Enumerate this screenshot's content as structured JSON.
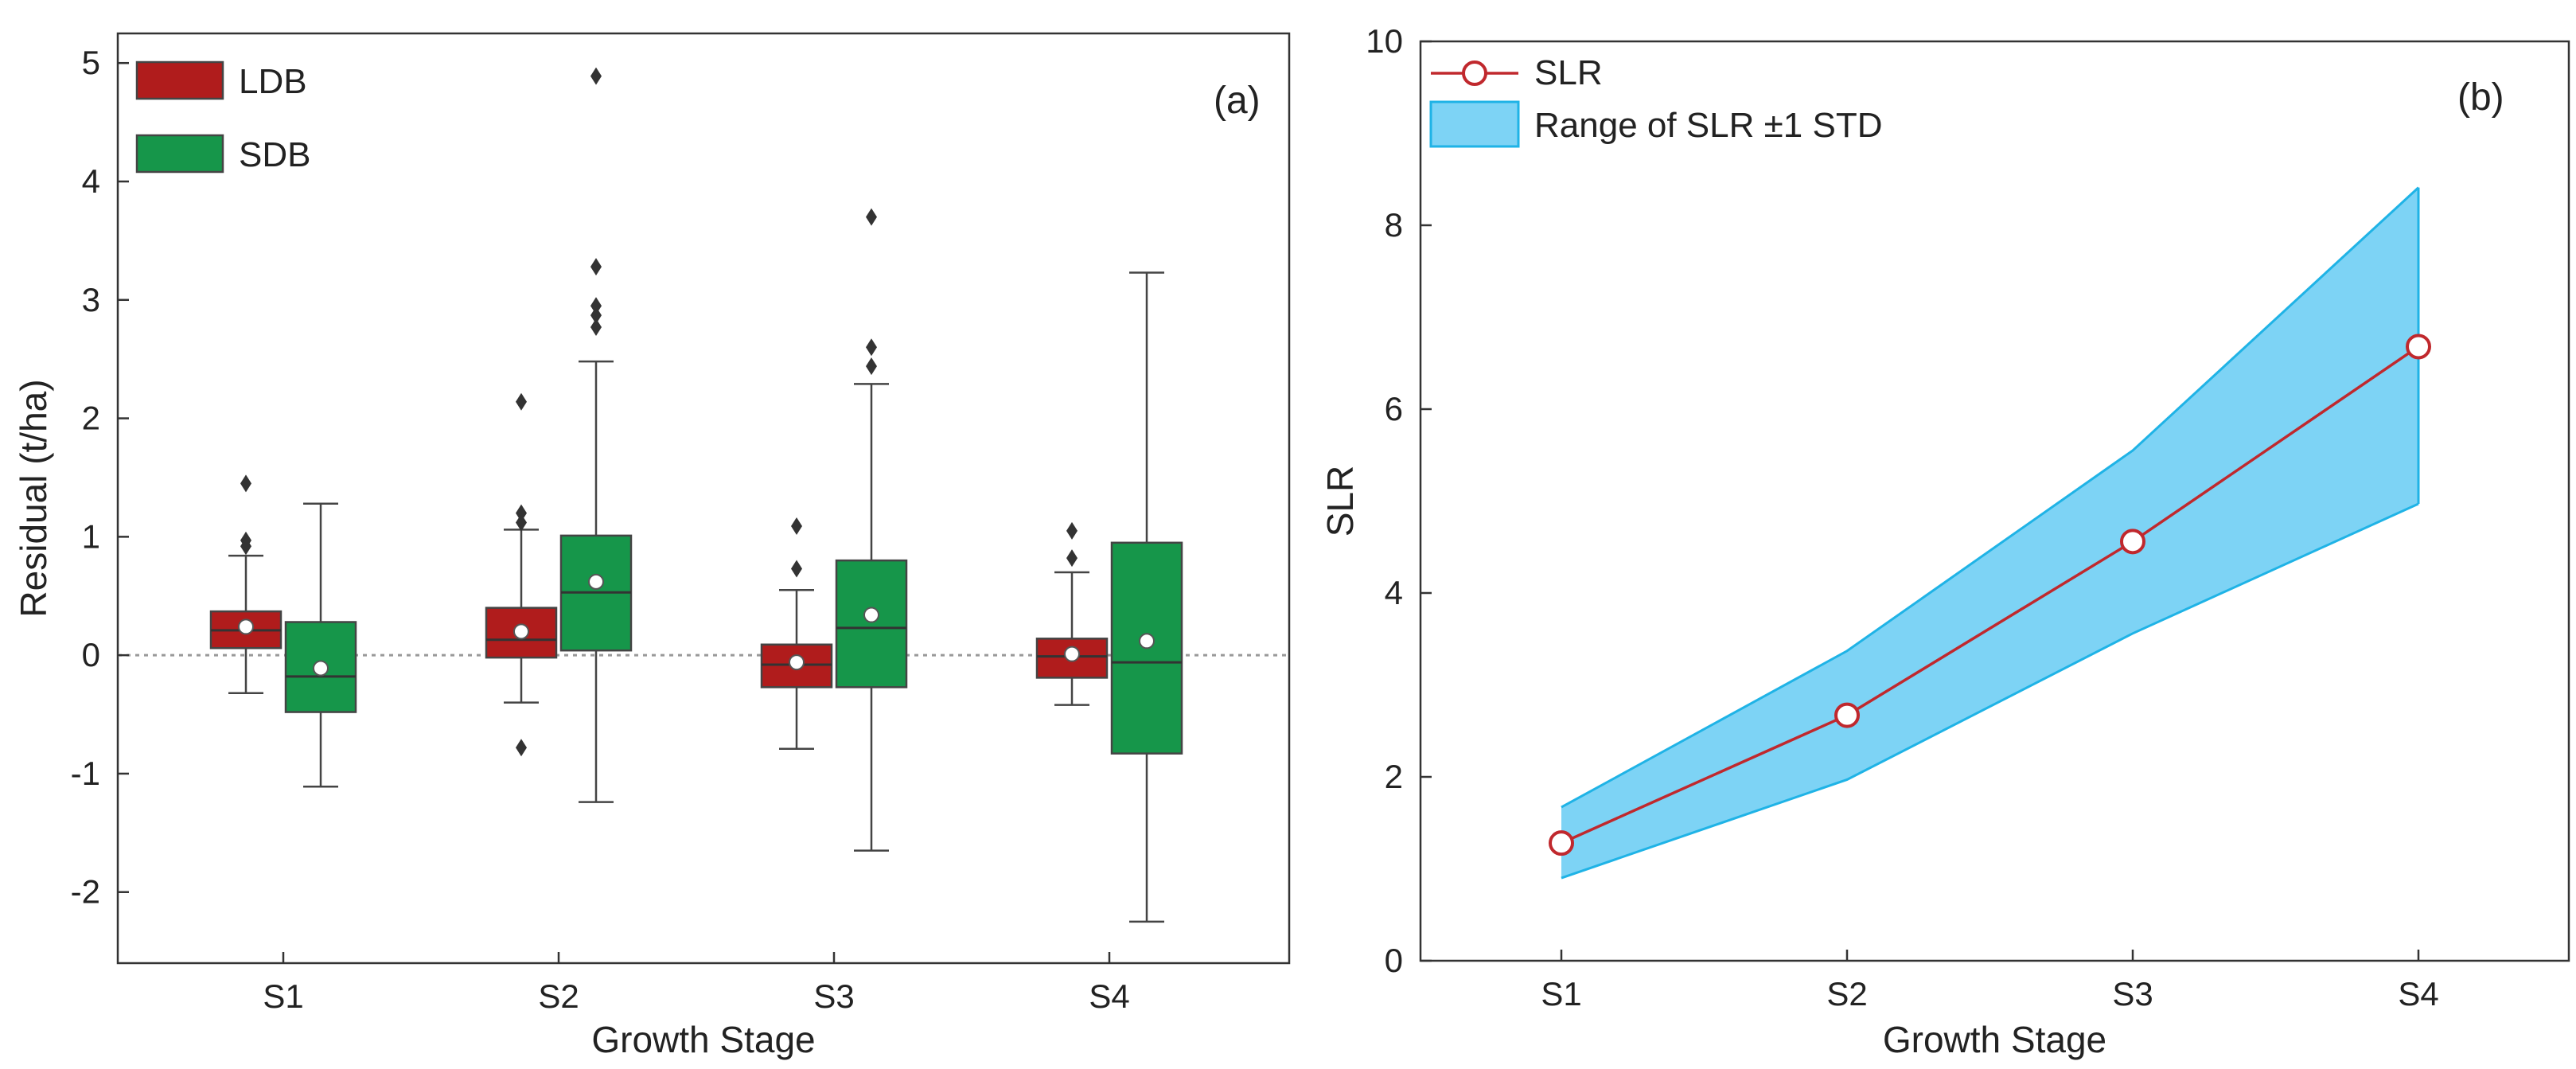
{
  "chart_data": [
    {
      "panel_label": "(a)",
      "type": "box",
      "xlabel": "Growth Stage",
      "ylabel": "Residual (t/ha)",
      "ylim": [
        -2.6,
        5.25
      ],
      "yticks": [
        -2,
        -1,
        0,
        1,
        2,
        3,
        4,
        5
      ],
      "categories": [
        "S1",
        "S2",
        "S3",
        "S4"
      ],
      "reference_line": 0,
      "legend_position": "top-left",
      "series": [
        {
          "name": "LDB",
          "color": "#b01c1c",
          "boxes": [
            {
              "whisker_low": -0.32,
              "q1": 0.06,
              "median": 0.21,
              "q3": 0.37,
              "whisker_high": 0.84,
              "mean": 0.24,
              "outliers": [
                0.92,
                0.97,
                1.45
              ]
            },
            {
              "whisker_low": -0.4,
              "q1": -0.02,
              "median": 0.13,
              "q3": 0.4,
              "whisker_high": 1.06,
              "mean": 0.2,
              "outliers": [
                -0.78,
                1.12,
                1.2,
                2.14
              ]
            },
            {
              "whisker_low": -0.79,
              "q1": -0.27,
              "median": -0.08,
              "q3": 0.09,
              "whisker_high": 0.55,
              "mean": -0.06,
              "outliers": [
                0.73,
                1.09
              ]
            },
            {
              "whisker_low": -0.42,
              "q1": -0.19,
              "median": -0.01,
              "q3": 0.14,
              "whisker_high": 0.7,
              "mean": 0.01,
              "outliers": [
                0.82,
                1.05
              ]
            }
          ]
        },
        {
          "name": "SDB",
          "color": "#16964a",
          "boxes": [
            {
              "whisker_low": -1.11,
              "q1": -0.48,
              "median": -0.18,
              "q3": 0.28,
              "whisker_high": 1.28,
              "mean": -0.11,
              "outliers": []
            },
            {
              "whisker_low": -1.24,
              "q1": 0.04,
              "median": 0.53,
              "q3": 1.01,
              "whisker_high": 2.48,
              "mean": 0.62,
              "outliers": [
                2.77,
                2.87,
                2.95,
                3.28,
                4.89
              ]
            },
            {
              "whisker_low": -1.65,
              "q1": -0.27,
              "median": 0.23,
              "q3": 0.8,
              "whisker_high": 2.29,
              "mean": 0.34,
              "outliers": [
                2.44,
                2.6,
                3.7
              ]
            },
            {
              "whisker_low": -2.25,
              "q1": -0.83,
              "median": -0.06,
              "q3": 0.95,
              "whisker_high": 3.23,
              "mean": 0.12,
              "outliers": []
            }
          ]
        }
      ]
    },
    {
      "panel_label": "(b)",
      "type": "line",
      "xlabel": "Growth Stage",
      "ylabel": "SLR",
      "ylim": [
        0,
        10
      ],
      "yticks": [
        0,
        2,
        4,
        6,
        8,
        10
      ],
      "categories": [
        "S1",
        "S2",
        "S3",
        "S4"
      ],
      "legend_position": "top-left",
      "series": [
        {
          "name": "SLR",
          "color": "#c0282d",
          "values": [
            1.28,
            2.67,
            4.56,
            6.68
          ]
        }
      ],
      "band": {
        "name": "Range of SLR ±1 STD",
        "color": "#7dd3f5",
        "edge_color": "#1fb3e6",
        "lower": [
          0.9,
          1.97,
          3.56,
          4.97
        ],
        "upper": [
          1.67,
          3.37,
          5.55,
          8.41
        ]
      }
    }
  ]
}
